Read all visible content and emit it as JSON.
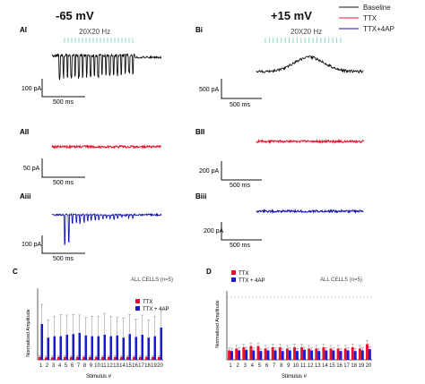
{
  "headings": {
    "left_voltage": "-65 mV",
    "right_voltage": "+15 mV"
  },
  "legend": {
    "items": [
      {
        "label": "Baseline",
        "color": "#111111"
      },
      {
        "label": "TTX",
        "color": "#e8102a"
      },
      {
        "label": "TTX+4AP",
        "color": "#1616b4"
      }
    ]
  },
  "colors": {
    "baseline": "#111111",
    "ttx": "#e8102a",
    "ttx_4ap": "#1616b4",
    "stim": "#8fd8c8"
  },
  "traces": [
    {
      "panel": "AI",
      "stim_label": "20X20 Hz",
      "condition": "Baseline",
      "scale_y": "100 pA",
      "scale_x": "500 ms"
    },
    {
      "panel": "AII",
      "condition": "TTX",
      "scale_y": "50 pA",
      "scale_x": "500 ms"
    },
    {
      "panel": "Aiii",
      "condition": "TTX+4AP",
      "scale_y": "100 pA",
      "scale_x": "500 ms"
    },
    {
      "panel": "Bi",
      "stim_label": "20X20 Hz",
      "condition": "Baseline",
      "scale_y": "500 pA",
      "scale_x": "500 ms"
    },
    {
      "panel": "BII",
      "condition": "TTX",
      "scale_y": "200 pA",
      "scale_x": "500 ms"
    },
    {
      "panel": "Biii",
      "condition": "TTX+4AP",
      "scale_y": "200 pA",
      "scale_x": "500 ms"
    }
  ],
  "chart_data": [
    {
      "panel": "C",
      "type": "bar",
      "annotation": "ALL CELLS (n=5)",
      "xlabel": "Stimulus #",
      "ylabel": "Normalized Amplitude",
      "categories": [
        "1",
        "2",
        "3",
        "4",
        "5",
        "6",
        "7",
        "8",
        "9",
        "10",
        "11",
        "12",
        "13",
        "14",
        "15",
        "16",
        "17",
        "18",
        "19",
        "20"
      ],
      "series": [
        {
          "name": "TTX",
          "color": "#e8102a",
          "values": [
            0.08,
            0.07,
            0.07,
            0.08,
            0.08,
            0.08,
            0.08,
            0.08,
            0.08,
            0.08,
            0.08,
            0.08,
            0.08,
            0.08,
            0.08,
            0.08,
            0.08,
            0.08,
            0.08,
            0.08
          ],
          "errors": [
            0.04,
            0.04,
            0.04,
            0.04,
            0.04,
            0.04,
            0.04,
            0.04,
            0.04,
            0.04,
            0.04,
            0.04,
            0.04,
            0.04,
            0.04,
            0.04,
            0.04,
            0.04,
            0.04,
            0.04
          ]
        },
        {
          "name": "TTX + 4AP",
          "color": "#1a1ad0",
          "values": [
            1.0,
            0.62,
            0.66,
            0.66,
            0.7,
            0.72,
            0.75,
            0.68,
            0.66,
            0.66,
            0.7,
            0.66,
            0.68,
            0.62,
            0.72,
            0.64,
            0.7,
            0.62,
            0.66,
            0.9
          ],
          "errors": [
            0.55,
            0.5,
            0.55,
            0.6,
            0.55,
            0.55,
            0.5,
            0.5,
            0.55,
            0.55,
            0.6,
            0.55,
            0.5,
            0.55,
            0.55,
            0.5,
            0.55,
            0.5,
            0.55,
            0.45
          ]
        }
      ],
      "ylim": [
        0,
        2.0
      ]
    },
    {
      "panel": "D",
      "type": "bar",
      "annotation": "ALL CELLS (n=5)",
      "xlabel": "Stimulus #",
      "ylabel": "Normalized Amplitude",
      "categories": [
        "1",
        "2",
        "3",
        "4",
        "5",
        "6",
        "7",
        "8",
        "9",
        "10",
        "11",
        "12",
        "13",
        "14",
        "15",
        "16",
        "17",
        "18",
        "19",
        "20"
      ],
      "series": [
        {
          "name": "TTX",
          "color": "#e8102a",
          "values": [
            0.15,
            0.18,
            0.2,
            0.22,
            0.22,
            0.18,
            0.2,
            0.2,
            0.18,
            0.2,
            0.2,
            0.18,
            0.18,
            0.2,
            0.18,
            0.18,
            0.18,
            0.2,
            0.18,
            0.25
          ],
          "errors": [
            0.04,
            0.05,
            0.05,
            0.05,
            0.05,
            0.05,
            0.05,
            0.05,
            0.05,
            0.05,
            0.05,
            0.05,
            0.05,
            0.05,
            0.05,
            0.05,
            0.05,
            0.05,
            0.05,
            0.06
          ]
        },
        {
          "name": "TTX + 4AP",
          "color": "#1a1ad0",
          "values": [
            0.14,
            0.15,
            0.16,
            0.15,
            0.14,
            0.15,
            0.15,
            0.14,
            0.15,
            0.14,
            0.16,
            0.15,
            0.14,
            0.15,
            0.15,
            0.14,
            0.15,
            0.14,
            0.15,
            0.17
          ],
          "errors": [
            0.04,
            0.04,
            0.04,
            0.04,
            0.04,
            0.04,
            0.04,
            0.04,
            0.04,
            0.04,
            0.04,
            0.04,
            0.04,
            0.04,
            0.04,
            0.04,
            0.04,
            0.04,
            0.04,
            0.04
          ]
        }
      ],
      "ylim": [
        0,
        1.1
      ],
      "reference_line": 1.0
    }
  ]
}
